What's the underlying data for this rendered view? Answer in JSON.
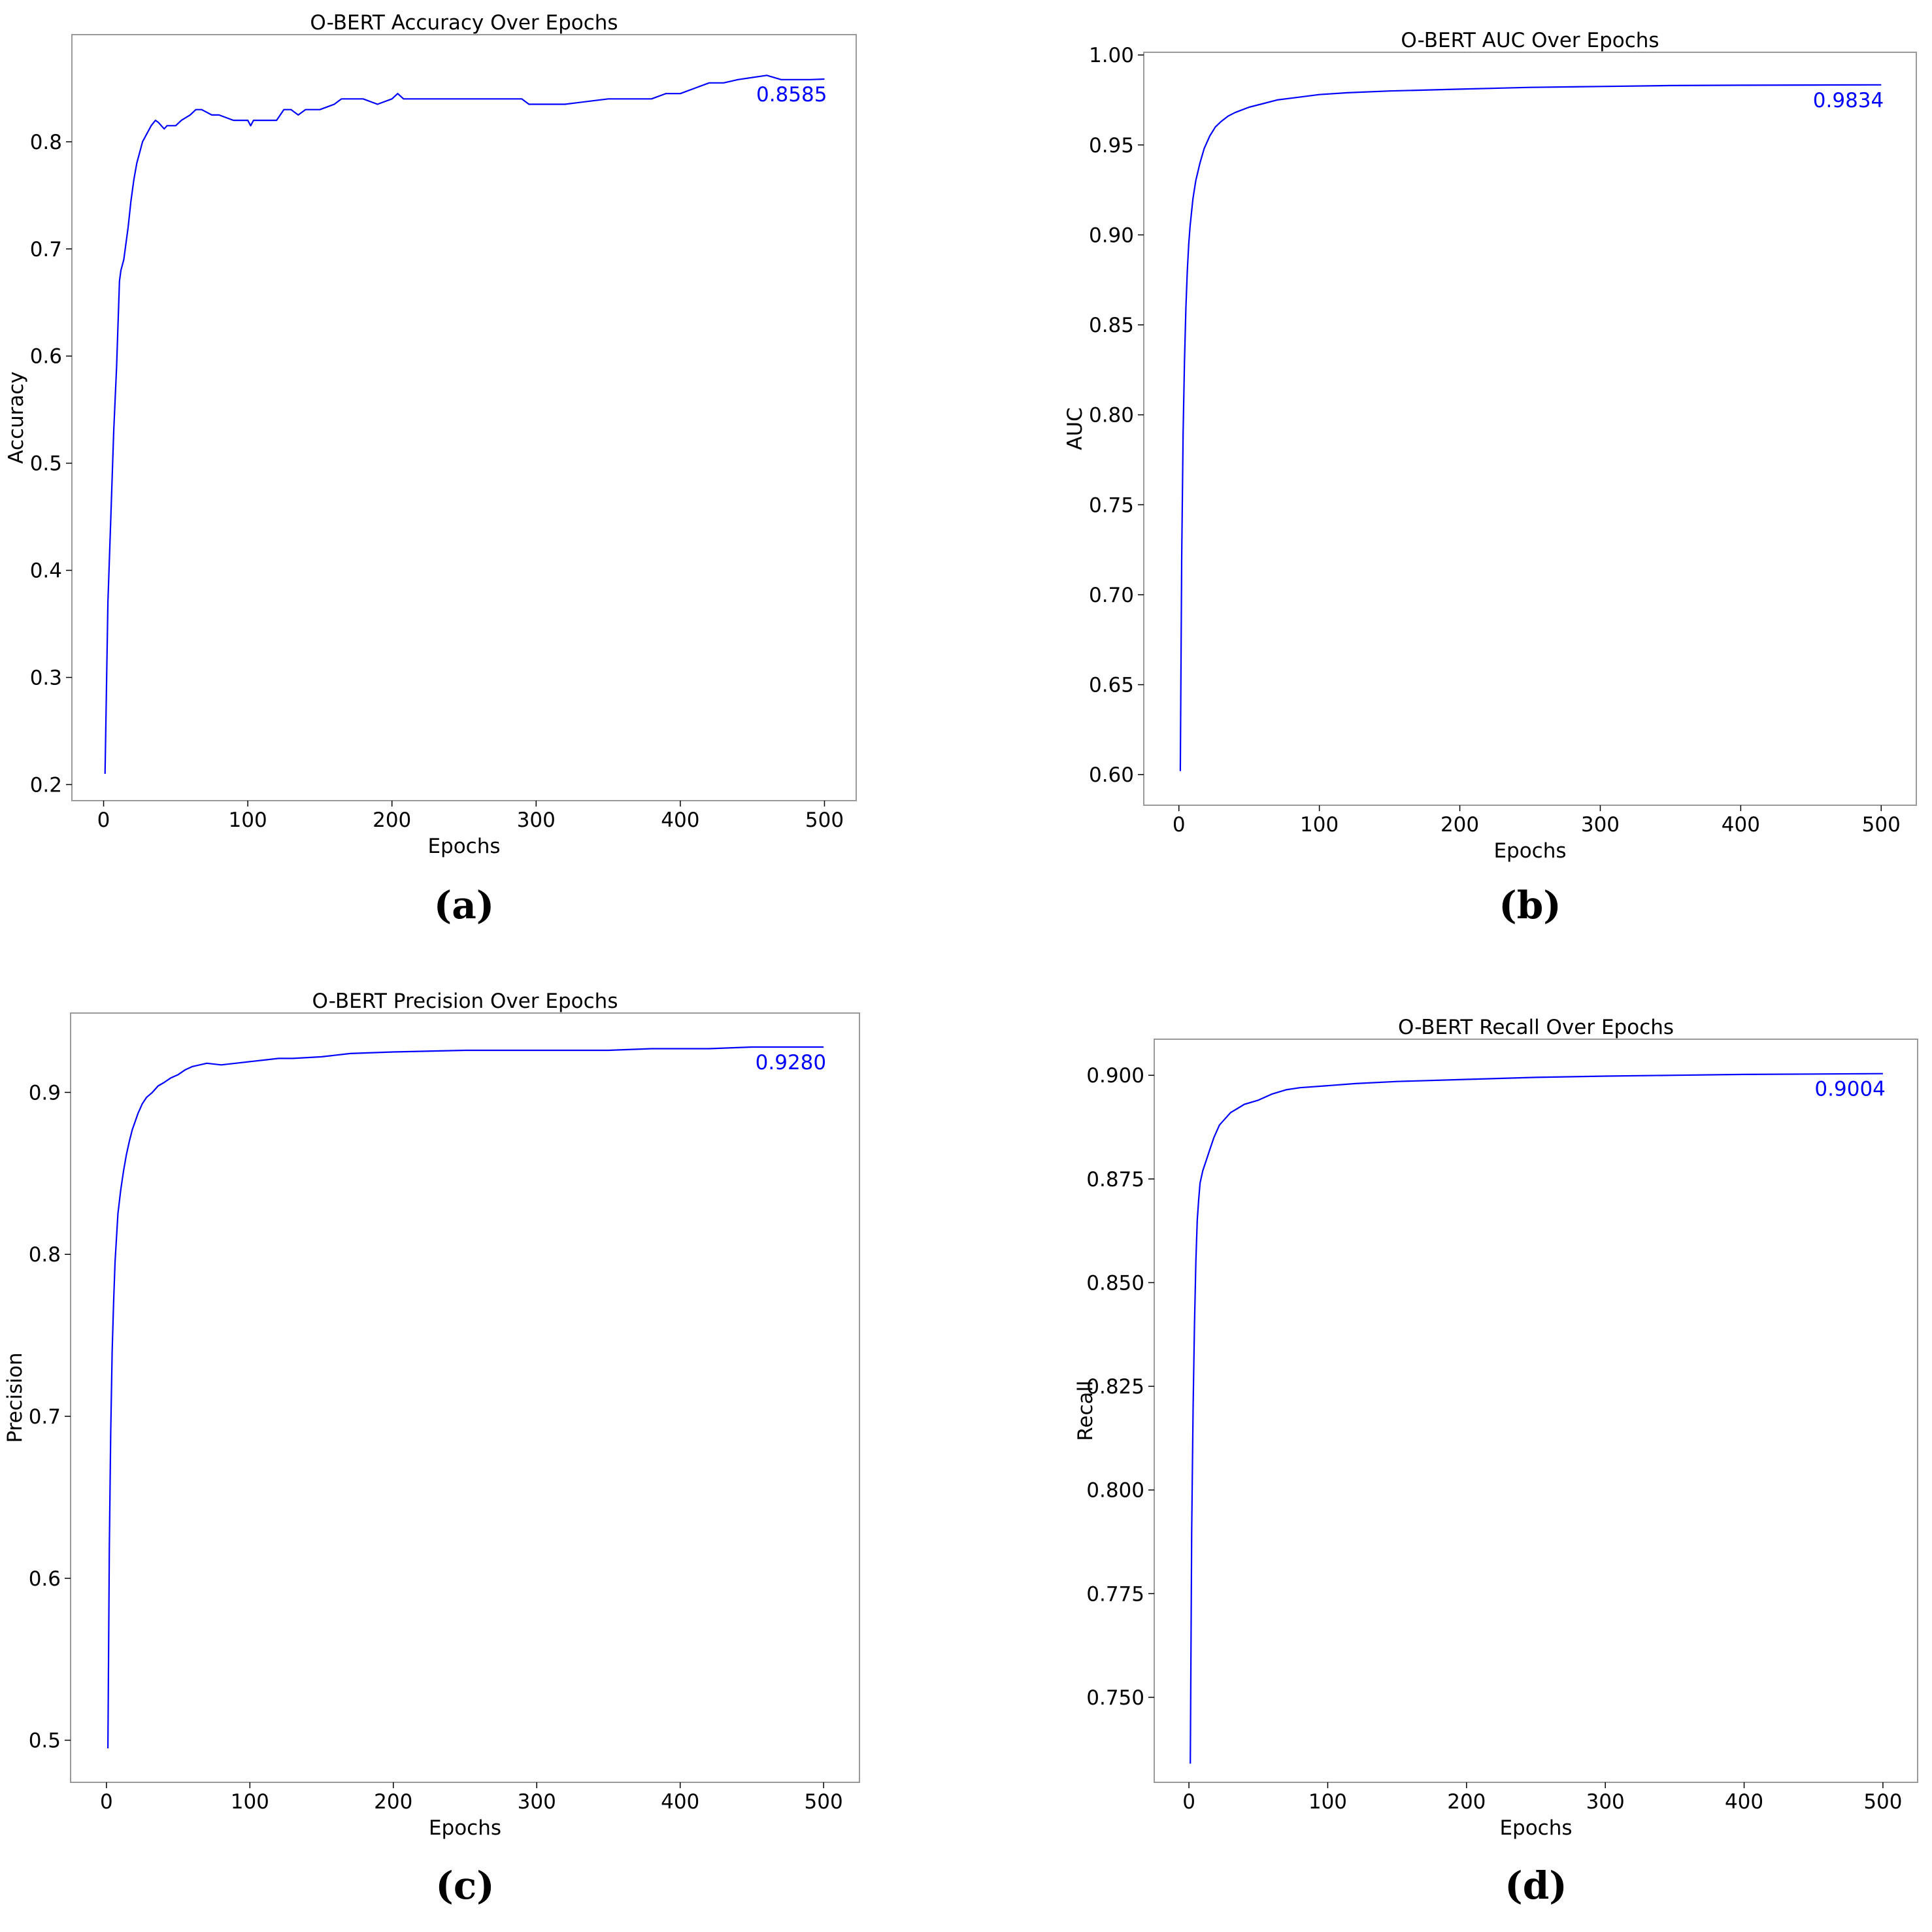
{
  "line_color": "#0000ff",
  "chart_data": [
    {
      "type": "line",
      "panel_label": "(a)",
      "title": "O-BERT Accuracy Over Epochs",
      "xlabel": "Epochs",
      "ylabel": "Accuracy",
      "xlim": [
        -22,
        522
      ],
      "ylim": [
        0.185,
        0.9
      ],
      "xticks": [
        0,
        100,
        200,
        300,
        400,
        500
      ],
      "yticks": [
        0.2,
        0.3,
        0.4,
        0.5,
        0.6,
        0.7,
        0.8
      ],
      "ytick_labels": [
        "0.2",
        "0.3",
        "0.4",
        "0.5",
        "0.6",
        "0.7",
        "0.8"
      ],
      "grid": false,
      "final_label": "0.8585",
      "series": [
        {
          "x": [
            1,
            3,
            5,
            7,
            9,
            11,
            12,
            14,
            17,
            19,
            21,
            23,
            25,
            27,
            29,
            31,
            33,
            36,
            38,
            40,
            42,
            44,
            46,
            50,
            54,
            60,
            64,
            68,
            75,
            80,
            90,
            100,
            102,
            104,
            110,
            120,
            125,
            130,
            135,
            140,
            150,
            160,
            165,
            170,
            180,
            190,
            200,
            204,
            208,
            212,
            250,
            290,
            295,
            300,
            320,
            350,
            360,
            380,
            390,
            400,
            410,
            420,
            430,
            440,
            460,
            470,
            480,
            490,
            500
          ],
          "values": [
            0.21,
            0.37,
            0.45,
            0.53,
            0.59,
            0.67,
            0.68,
            0.69,
            0.72,
            0.745,
            0.765,
            0.78,
            0.79,
            0.8,
            0.805,
            0.81,
            0.815,
            0.82,
            0.818,
            0.815,
            0.812,
            0.815,
            0.815,
            0.815,
            0.82,
            0.825,
            0.83,
            0.83,
            0.825,
            0.825,
            0.82,
            0.82,
            0.815,
            0.82,
            0.82,
            0.82,
            0.83,
            0.83,
            0.825,
            0.83,
            0.83,
            0.835,
            0.84,
            0.84,
            0.84,
            0.835,
            0.84,
            0.845,
            0.84,
            0.84,
            0.84,
            0.84,
            0.835,
            0.835,
            0.835,
            0.84,
            0.84,
            0.84,
            0.845,
            0.845,
            0.85,
            0.855,
            0.855,
            0.858,
            0.862,
            0.858,
            0.858,
            0.858,
            0.8585
          ]
        }
      ]
    },
    {
      "type": "line",
      "panel_label": "(b)",
      "title": "O-BERT AUC Over Epochs",
      "xlabel": "Epochs",
      "ylabel": "AUC",
      "xlim": [
        -25,
        525
      ],
      "ylim": [
        0.583,
        1.0015
      ],
      "xticks": [
        0,
        100,
        200,
        300,
        400,
        500
      ],
      "yticks": [
        0.6,
        0.65,
        0.7,
        0.75,
        0.8,
        0.85,
        0.9,
        0.95,
        1.0
      ],
      "ytick_labels": [
        "0.60",
        "0.65",
        "0.70",
        "0.75",
        "0.80",
        "0.85",
        "0.90",
        "0.95",
        "1.00"
      ],
      "grid": false,
      "final_label": "0.9834",
      "series": [
        {
          "x": [
            1,
            2,
            3,
            4,
            5,
            6,
            7,
            8,
            10,
            12,
            15,
            18,
            22,
            26,
            30,
            35,
            40,
            50,
            60,
            70,
            80,
            100,
            120,
            150,
            200,
            250,
            300,
            350,
            400,
            450,
            500
          ],
          "values": [
            0.602,
            0.72,
            0.79,
            0.83,
            0.86,
            0.88,
            0.895,
            0.905,
            0.92,
            0.93,
            0.94,
            0.948,
            0.955,
            0.96,
            0.963,
            0.966,
            0.968,
            0.971,
            0.973,
            0.975,
            0.976,
            0.978,
            0.979,
            0.98,
            0.981,
            0.982,
            0.9825,
            0.983,
            0.9832,
            0.9833,
            0.9834
          ]
        }
      ]
    },
    {
      "type": "line",
      "panel_label": "(c)",
      "title": "O-BERT Precision Over Epochs",
      "xlabel": "Epochs",
      "ylabel": "Precision",
      "xlim": [
        -25,
        525
      ],
      "ylim": [
        0.474,
        0.949
      ],
      "xticks": [
        0,
        100,
        200,
        300,
        400,
        500
      ],
      "yticks": [
        0.5,
        0.6,
        0.7,
        0.8,
        0.9
      ],
      "ytick_labels": [
        "0.5",
        "0.6",
        "0.7",
        "0.8",
        "0.9"
      ],
      "grid": false,
      "final_label": "0.9280",
      "series": [
        {
          "x": [
            1,
            2,
            3,
            4,
            5,
            6,
            7,
            8,
            10,
            12,
            14,
            16,
            18,
            20,
            22,
            25,
            28,
            32,
            36,
            40,
            45,
            50,
            55,
            60,
            70,
            80,
            90,
            100,
            110,
            120,
            130,
            150,
            170,
            200,
            250,
            300,
            350,
            380,
            400,
            420,
            450,
            500
          ],
          "values": [
            0.495,
            0.62,
            0.69,
            0.74,
            0.77,
            0.795,
            0.81,
            0.825,
            0.84,
            0.852,
            0.862,
            0.87,
            0.877,
            0.882,
            0.887,
            0.893,
            0.897,
            0.9,
            0.904,
            0.906,
            0.909,
            0.911,
            0.914,
            0.916,
            0.918,
            0.917,
            0.918,
            0.919,
            0.92,
            0.921,
            0.921,
            0.922,
            0.924,
            0.925,
            0.926,
            0.926,
            0.926,
            0.927,
            0.927,
            0.927,
            0.928,
            0.928
          ]
        }
      ]
    },
    {
      "type": "line",
      "panel_label": "(d)",
      "title": "O-BERT Recall Over Epochs",
      "xlabel": "Epochs",
      "ylabel": "Recall",
      "xlim": [
        -25,
        525
      ],
      "ylim": [
        0.7295,
        0.9087
      ],
      "xticks": [
        0,
        100,
        200,
        300,
        400,
        500
      ],
      "yticks": [
        0.75,
        0.775,
        0.8,
        0.825,
        0.85,
        0.875,
        0.9
      ],
      "ytick_labels": [
        "0.750",
        "0.775",
        "0.800",
        "0.825",
        "0.850",
        "0.875",
        "0.900"
      ],
      "grid": false,
      "final_label": "0.9004",
      "series": [
        {
          "x": [
            1,
            2,
            3,
            4,
            5,
            6,
            7,
            8,
            10,
            12,
            15,
            18,
            22,
            26,
            30,
            35,
            40,
            50,
            60,
            70,
            80,
            100,
            120,
            150,
            200,
            250,
            300,
            350,
            400,
            450,
            500
          ],
          "values": [
            0.734,
            0.79,
            0.82,
            0.84,
            0.855,
            0.865,
            0.87,
            0.874,
            0.877,
            0.879,
            0.882,
            0.885,
            0.888,
            0.8895,
            0.891,
            0.892,
            0.893,
            0.894,
            0.8955,
            0.8965,
            0.897,
            0.8975,
            0.898,
            0.8985,
            0.899,
            0.8995,
            0.8998,
            0.9,
            0.9002,
            0.9003,
            0.9004
          ]
        }
      ]
    }
  ]
}
